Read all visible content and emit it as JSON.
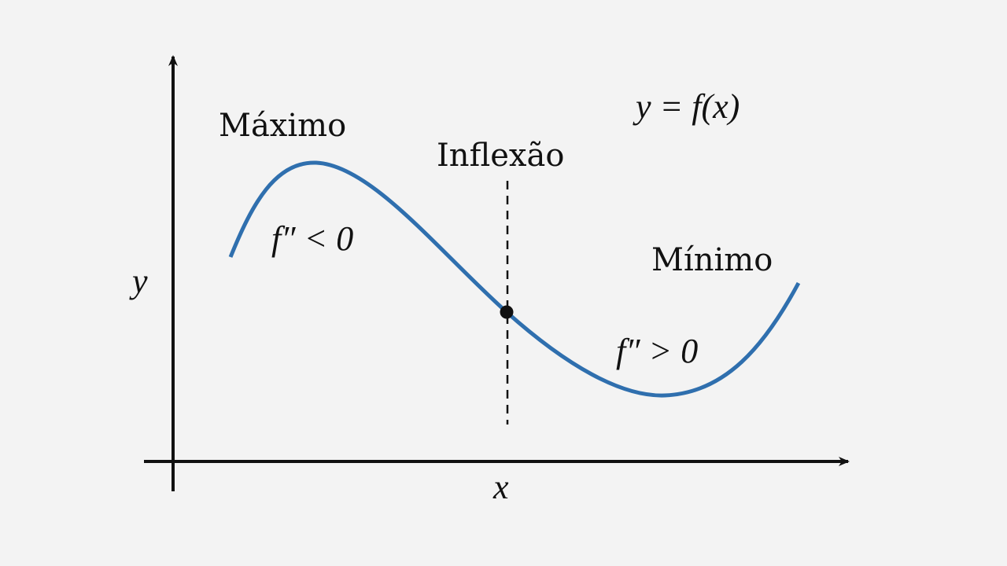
{
  "diagram": {
    "labels": {
      "maximum": "Máximo",
      "inflection": "Inflexão",
      "minimum": "Mínimo",
      "function": "y = f(x)",
      "concave_down": "f″ < 0",
      "concave_up": "f″ > 0",
      "y_axis": "y",
      "x_axis": "x"
    },
    "colors": {
      "curve": "#2f6fae",
      "axes": "#111111",
      "background": "#f3f3f3"
    }
  }
}
